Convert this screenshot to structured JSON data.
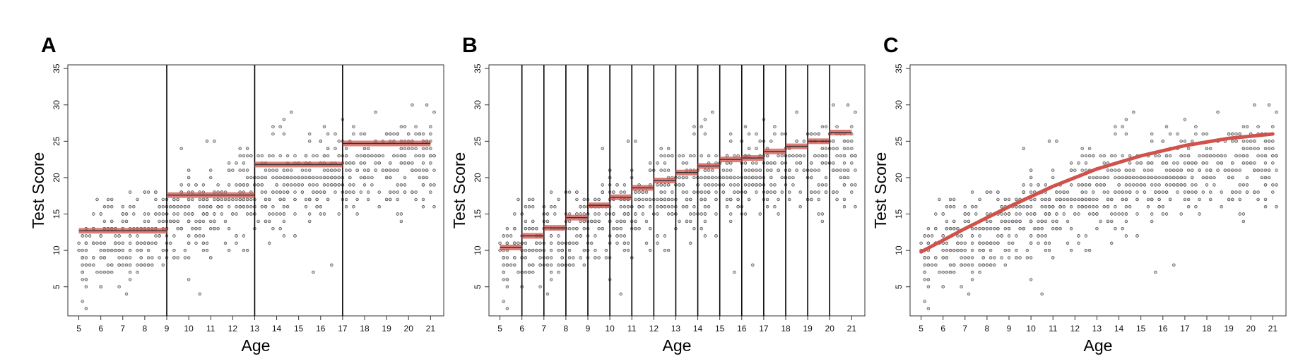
{
  "chart_data": [
    {
      "panel": "A",
      "type": "scatter",
      "xlabel": "Age",
      "ylabel": "Test Score",
      "xticks": [
        5,
        6,
        7,
        8,
        9,
        10,
        11,
        12,
        13,
        14,
        15,
        16,
        17,
        18,
        19,
        20,
        21
      ],
      "yticks": [
        5,
        10,
        15,
        20,
        25,
        30,
        35
      ],
      "xlim": [
        4.5,
        21.6
      ],
      "ylim": [
        1,
        35.5
      ],
      "breakpoints": [
        9,
        13,
        17
      ],
      "fit": {
        "kind": "piecewise-constant",
        "segments": [
          {
            "x0": 5,
            "x1": 9,
            "y": 12.7
          },
          {
            "x0": 9,
            "x1": 13,
            "y": 17.6
          },
          {
            "x0": 13,
            "x1": 17,
            "y": 21.8
          },
          {
            "x0": 17,
            "x1": 21,
            "y": 24.7
          }
        ]
      },
      "color": "#d0524a"
    },
    {
      "panel": "B",
      "type": "scatter",
      "xlabel": "Age",
      "ylabel": "Test Score",
      "xticks": [
        5,
        6,
        7,
        8,
        9,
        10,
        11,
        12,
        13,
        14,
        15,
        16,
        17,
        18,
        19,
        20,
        21
      ],
      "yticks": [
        5,
        10,
        15,
        20,
        25,
        30,
        35
      ],
      "xlim": [
        4.5,
        21.6
      ],
      "ylim": [
        1,
        35.5
      ],
      "breakpoints": [
        6,
        7,
        8,
        9,
        10,
        11,
        12,
        13,
        14,
        15,
        16,
        17,
        18,
        19,
        20
      ],
      "fit": {
        "kind": "piecewise-constant",
        "segments": [
          {
            "x0": 5,
            "x1": 6,
            "y": 10.4
          },
          {
            "x0": 6,
            "x1": 7,
            "y": 12.0
          },
          {
            "x0": 7,
            "x1": 8,
            "y": 13.1
          },
          {
            "x0": 8,
            "x1": 9,
            "y": 14.5
          },
          {
            "x0": 9,
            "x1": 10,
            "y": 16.2
          },
          {
            "x0": 10,
            "x1": 11,
            "y": 17.3
          },
          {
            "x0": 11,
            "x1": 12,
            "y": 18.6
          },
          {
            "x0": 12,
            "x1": 13,
            "y": 19.6
          },
          {
            "x0": 13,
            "x1": 14,
            "y": 20.7
          },
          {
            "x0": 14,
            "x1": 15,
            "y": 21.6
          },
          {
            "x0": 15,
            "x1": 16,
            "y": 22.5
          },
          {
            "x0": 16,
            "x1": 17,
            "y": 22.7
          },
          {
            "x0": 17,
            "x1": 18,
            "y": 23.6
          },
          {
            "x0": 18,
            "x1": 19,
            "y": 24.3
          },
          {
            "x0": 19,
            "x1": 20,
            "y": 25.0
          },
          {
            "x0": 20,
            "x1": 21,
            "y": 26.2
          }
        ]
      },
      "color": "#d0524a"
    },
    {
      "panel": "C",
      "type": "scatter",
      "xlabel": "Age",
      "ylabel": "Test Score",
      "xticks": [
        5,
        6,
        7,
        8,
        9,
        10,
        11,
        12,
        13,
        14,
        15,
        16,
        17,
        18,
        19,
        20,
        21
      ],
      "yticks": [
        5,
        10,
        15,
        20,
        25,
        30,
        35
      ],
      "xlim": [
        4.5,
        21.6
      ],
      "ylim": [
        1,
        35.5
      ],
      "breakpoints": [],
      "fit": {
        "kind": "smooth-curve",
        "points": [
          [
            5,
            9.8
          ],
          [
            7,
            13.0
          ],
          [
            9,
            16.0
          ],
          [
            11,
            18.8
          ],
          [
            13,
            21.2
          ],
          [
            15,
            23.0
          ],
          [
            17,
            24.4
          ],
          [
            19,
            25.4
          ],
          [
            21,
            26.0
          ]
        ]
      },
      "color": "#d0524a"
    }
  ]
}
